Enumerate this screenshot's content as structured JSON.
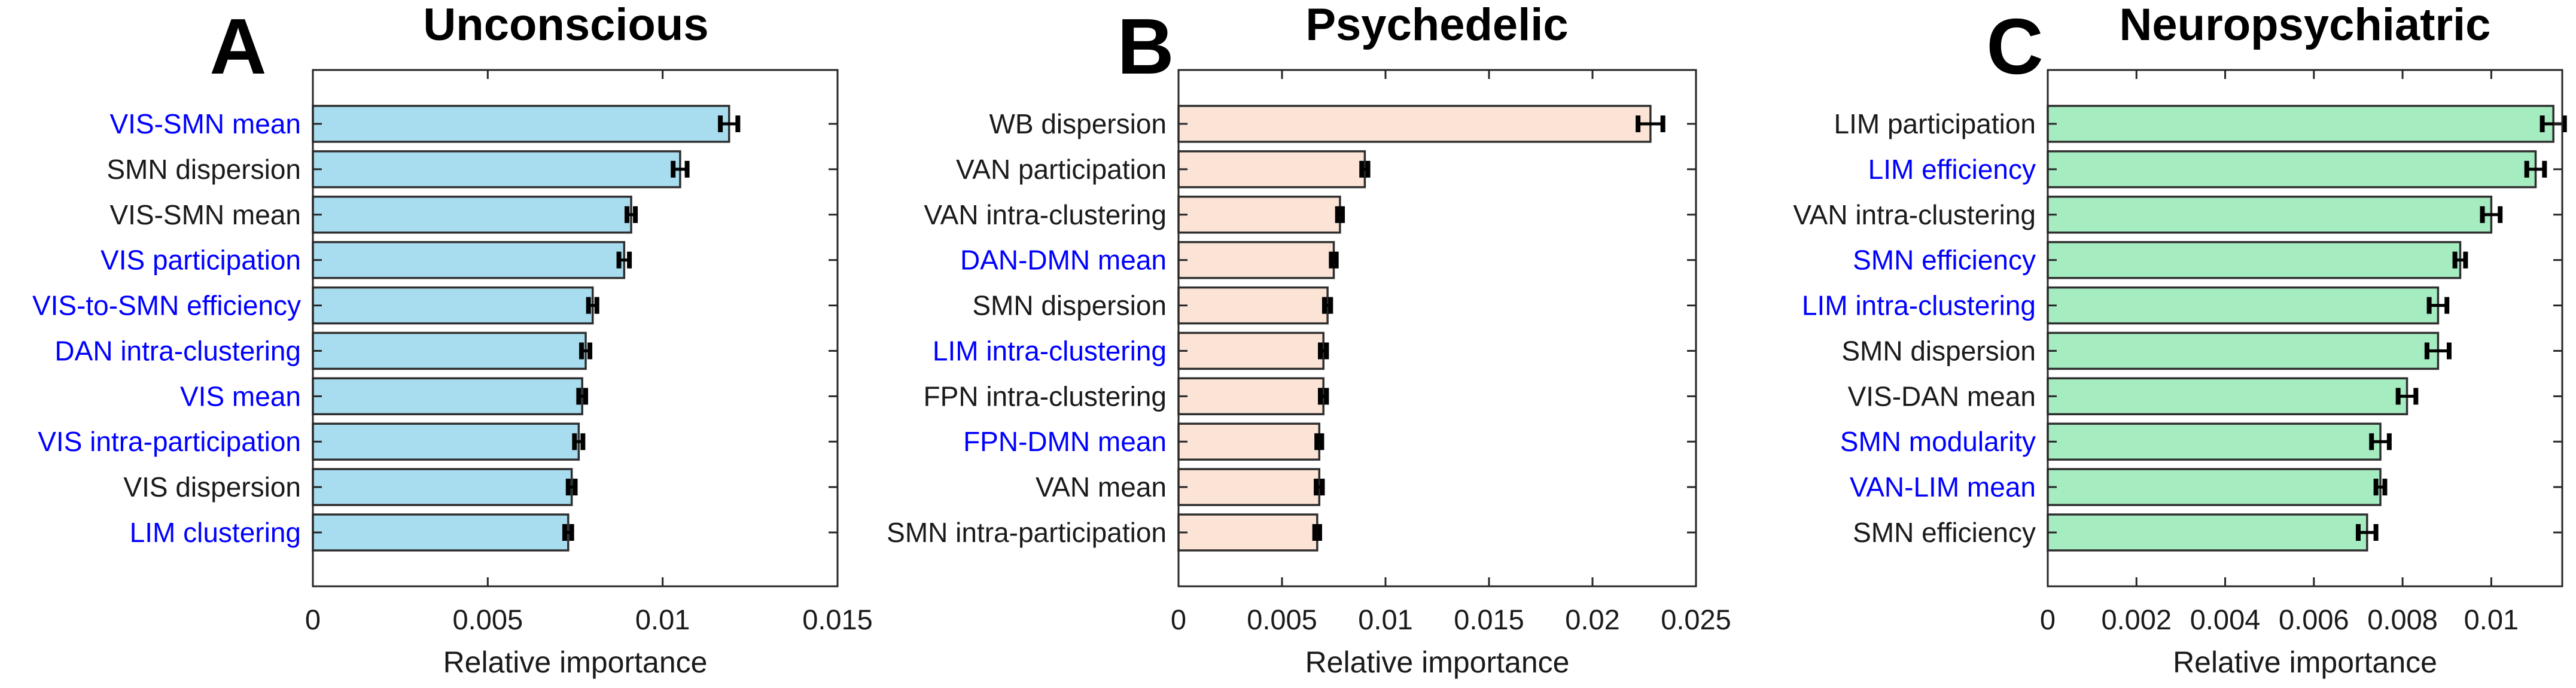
{
  "figure": {
    "panels": [
      {
        "letter": "A",
        "title": "Unconscious"
      },
      {
        "letter": "B",
        "title": "Psychedelic"
      },
      {
        "letter": "C",
        "title": "Neuropsychiatric"
      }
    ]
  },
  "chart_data": [
    {
      "type": "bar",
      "orientation": "horizontal",
      "panel_letter": "A",
      "title": "Unconscious",
      "xlabel": "Relative importance",
      "categories": [
        "VIS-SMN mean",
        "SMN dispersion",
        "VIS-SMN mean",
        "VIS participation",
        "VIS-to-SMN efficiency",
        "DAN intra-clustering",
        "VIS mean",
        "VIS intra-participation",
        "VIS dispersion",
        "LIM clustering"
      ],
      "values": [
        0.0119,
        0.0105,
        0.0091,
        0.0089,
        0.008,
        0.0078,
        0.0077,
        0.0076,
        0.0074,
        0.0073
      ],
      "errors": [
        0.00025,
        0.0002,
        0.00012,
        0.00015,
        0.00012,
        0.00012,
        0.0001,
        0.00012,
        0.0001,
        0.0001
      ],
      "label_colors": [
        "blue",
        "black",
        "black",
        "blue",
        "blue",
        "blue",
        "blue",
        "blue",
        "black",
        "blue"
      ],
      "bar_color": "#a8ddef",
      "blue_label_color": "#0000ff",
      "black_label_color": "#1a1a1a",
      "xlim": [
        0,
        0.015
      ],
      "xticks": [
        0,
        0.005,
        0.01,
        0.015
      ],
      "xtick_labels": [
        "0",
        "0.005",
        "0.01",
        "0.015"
      ],
      "grid": false,
      "legend": false
    },
    {
      "type": "bar",
      "orientation": "horizontal",
      "panel_letter": "B",
      "title": "Psychedelic",
      "xlabel": "Relative importance",
      "categories": [
        "WB dispersion",
        "VAN participation",
        "VAN intra-clustering",
        "DAN-DMN mean",
        "SMN dispersion",
        "LIM intra-clustering",
        "FPN intra-clustering",
        "FPN-DMN mean",
        "VAN mean",
        "SMN intra-participation"
      ],
      "values": [
        0.0228,
        0.009,
        0.0078,
        0.0075,
        0.0072,
        0.007,
        0.007,
        0.0068,
        0.0068,
        0.0067
      ],
      "errors": [
        0.0006,
        0.00015,
        0.00012,
        0.00012,
        0.00015,
        0.00015,
        0.00015,
        0.00012,
        0.00015,
        0.00012
      ],
      "label_colors": [
        "black",
        "black",
        "black",
        "blue",
        "black",
        "blue",
        "black",
        "blue",
        "black",
        "black"
      ],
      "bar_color": "#fbe3d5",
      "blue_label_color": "#0000ff",
      "black_label_color": "#1a1a1a",
      "xlim": [
        0,
        0.025
      ],
      "xticks": [
        0,
        0.005,
        0.01,
        0.015,
        0.02,
        0.025
      ],
      "xtick_labels": [
        "0",
        "0.005",
        "0.01",
        "0.015",
        "0.02",
        "0.025"
      ],
      "grid": false,
      "legend": false
    },
    {
      "type": "bar",
      "orientation": "horizontal",
      "panel_letter": "C",
      "title": "Neuropsychiatric",
      "xlabel": "Relative importance",
      "categories": [
        "LIM participation",
        "LIM efficiency",
        "VAN intra-clustering",
        "SMN efficiency",
        "LIM intra-clustering",
        "SMN dispersion",
        "VIS-DAN mean",
        "SMN modularity",
        "VAN-LIM mean",
        "SMN efficiency"
      ],
      "values": [
        0.0114,
        0.011,
        0.01,
        0.0093,
        0.0088,
        0.0088,
        0.0081,
        0.0075,
        0.0075,
        0.0072
      ],
      "errors": [
        0.00025,
        0.0002,
        0.0002,
        0.00012,
        0.0002,
        0.00025,
        0.0002,
        0.0002,
        0.0001,
        0.0002
      ],
      "label_colors": [
        "black",
        "blue",
        "black",
        "blue",
        "blue",
        "black",
        "black",
        "blue",
        "blue",
        "black"
      ],
      "bar_color": "#a5ecc1",
      "blue_label_color": "#0000ff",
      "black_label_color": "#1a1a1a",
      "xlim": [
        0,
        0.0116
      ],
      "xticks": [
        0,
        0.002,
        0.004,
        0.006,
        0.008,
        0.01
      ],
      "xtick_labels": [
        "0",
        "0.002",
        "0.004",
        "0.006",
        "0.008",
        "0.01"
      ],
      "grid": false,
      "legend": false
    }
  ]
}
